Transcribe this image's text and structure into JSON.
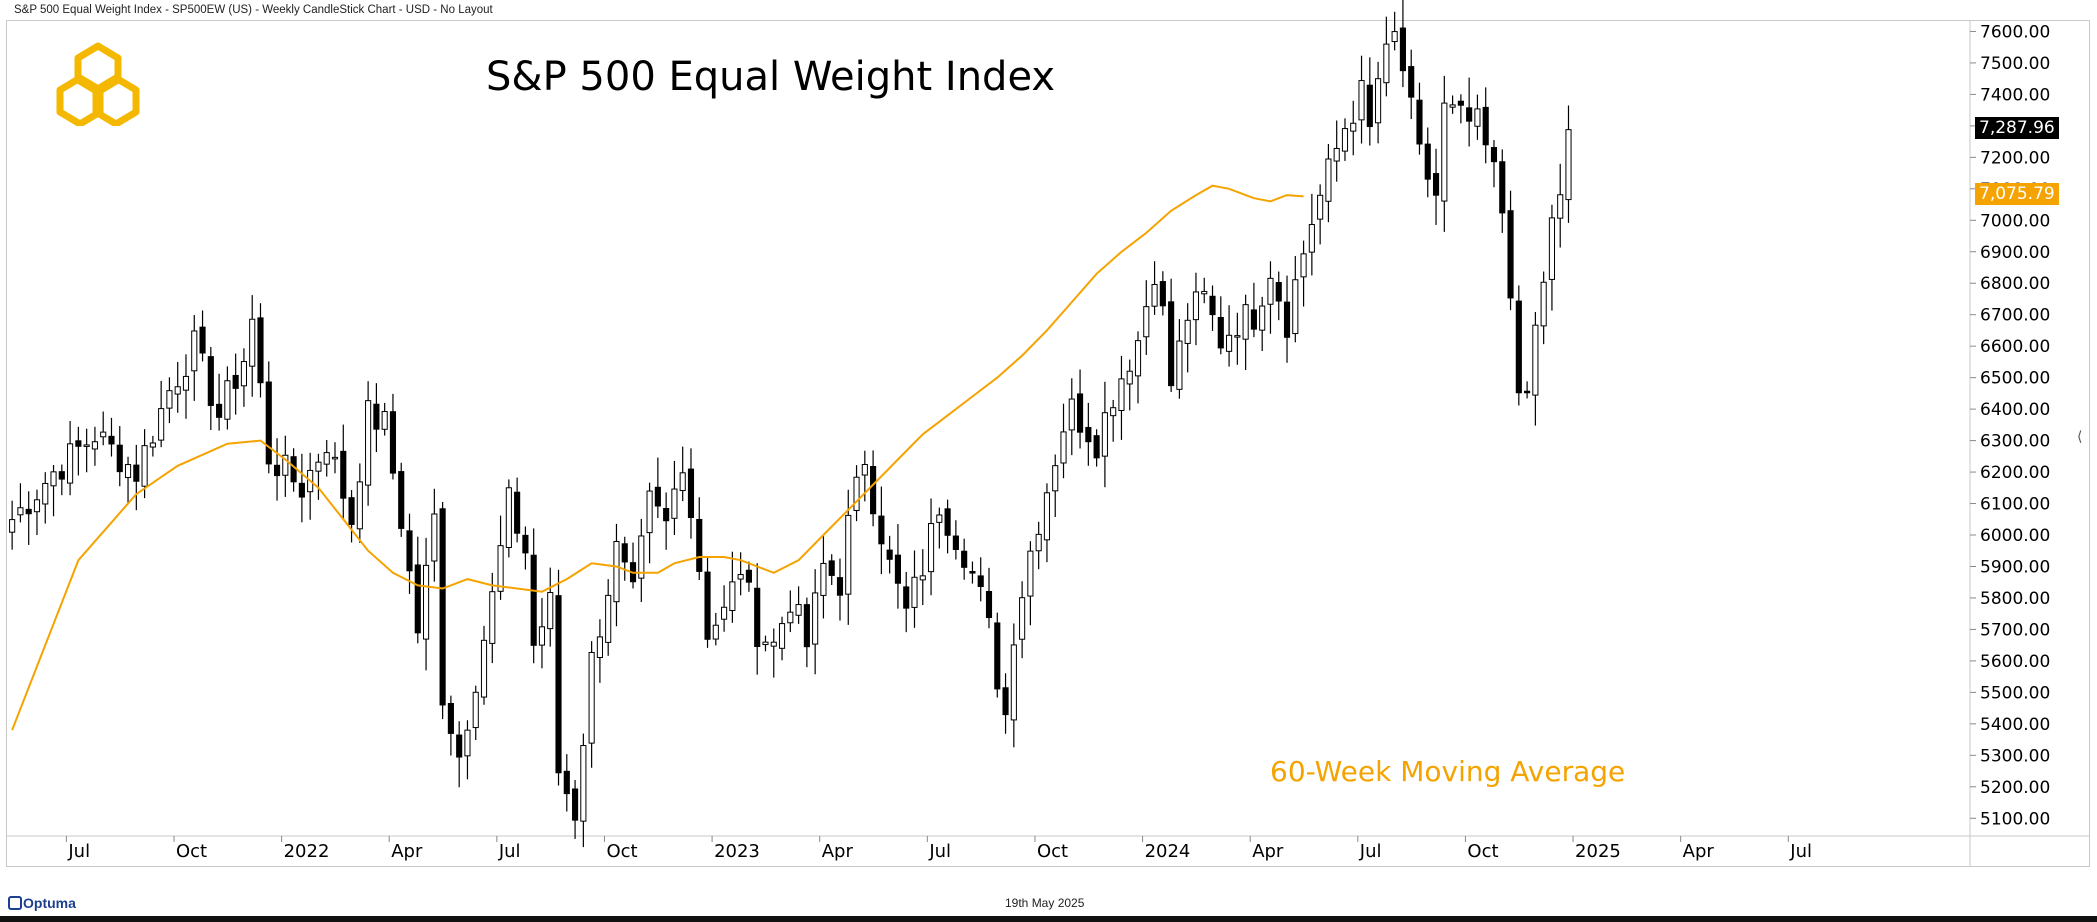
{
  "header": {
    "text": "S&P 500 Equal Weight Index - SP500EW (US) - Weekly CandleStick Chart - USD - No Layout"
  },
  "footer": {
    "date": "19th May 2025",
    "brand": "Optuma"
  },
  "colors": {
    "ma": "#F5A300",
    "candle": "#000000",
    "badge_last": "#000000",
    "logo": "#F5B800"
  },
  "icons": {
    "logo": "hexagon-logo-icon",
    "brand": "optuma-logo-icon",
    "collapse": "chevron-left-icon"
  },
  "chart_data": {
    "type": "candlestick",
    "title": "S&P 500 Equal Weight Index",
    "timeframe": "Weekly",
    "x_tick_labels": [
      "Jul",
      "Oct",
      "2022",
      "Apr",
      "Jul",
      "Oct",
      "2023",
      "Apr",
      "Jul",
      "Oct",
      "2024",
      "Apr",
      "Jul",
      "Oct",
      "2025",
      "Apr",
      "Jul"
    ],
    "x_tick_weeks": [
      8,
      21,
      34,
      47,
      60,
      73,
      86,
      99,
      112,
      125,
      138,
      151,
      164,
      177,
      190,
      203,
      216
    ],
    "y_ticks": [
      5100,
      5200,
      5300,
      5400,
      5500,
      5600,
      5700,
      5800,
      5900,
      6000,
      6100,
      6200,
      6300,
      6400,
      6500,
      6600,
      6700,
      6800,
      6900,
      7000,
      7100,
      7200,
      7300,
      7400,
      7500,
      7600
    ],
    "y_tick_labels": [
      "5100.00",
      "5200.00",
      "5300.00",
      "5400.00",
      "5500.00",
      "5600.00",
      "5700.00",
      "5800.00",
      "5900.00",
      "6000.00",
      "6100.00",
      "6200.00",
      "6300.00",
      "6400.00",
      "6500.00",
      "6600.00",
      "6700.00",
      "6800.00",
      "6900.00",
      "7000.00",
      "7100.00",
      "7200.00",
      "7300.00",
      "7400.00",
      "7500.00",
      "7600.00"
    ],
    "ylim": [
      5050,
      7630
    ],
    "series": [
      {
        "name": "60-Week Moving Average",
        "type": "line"
      }
    ],
    "last_close": 7287.96,
    "last_close_label": "7,287.96",
    "ma_last": 7075.79,
    "ma_last_label": "7,075.79",
    "anchors": [
      [
        0,
        6050
      ],
      [
        5,
        6200
      ],
      [
        10,
        6320
      ],
      [
        15,
        6200
      ],
      [
        19,
        6460
      ],
      [
        22,
        6600
      ],
      [
        25,
        6380
      ],
      [
        28,
        6560
      ],
      [
        29,
        6680
      ],
      [
        31,
        6250
      ],
      [
        33,
        6200
      ],
      [
        35,
        6150
      ],
      [
        38,
        6300
      ],
      [
        41,
        6050
      ],
      [
        43,
        6380
      ],
      [
        45,
        6350
      ],
      [
        47,
        6050
      ],
      [
        49,
        5700
      ],
      [
        51,
        6050
      ],
      [
        52,
        5500
      ],
      [
        54,
        5300
      ],
      [
        56,
        5550
      ],
      [
        58,
        5800
      ],
      [
        60,
        6100
      ],
      [
        62,
        5950
      ],
      [
        63,
        5650
      ],
      [
        65,
        5780
      ],
      [
        66,
        5250
      ],
      [
        68,
        5120
      ],
      [
        70,
        5600
      ],
      [
        73,
        5950
      ],
      [
        75,
        5800
      ],
      [
        77,
        6100
      ],
      [
        79,
        6030
      ],
      [
        81,
        6250
      ],
      [
        83,
        5900
      ],
      [
        84,
        5700
      ],
      [
        86,
        5750
      ],
      [
        88,
        5900
      ],
      [
        90,
        5700
      ],
      [
        92,
        5650
      ],
      [
        94,
        5800
      ],
      [
        96,
        5650
      ],
      [
        98,
        5900
      ],
      [
        100,
        5850
      ],
      [
        101,
        6030
      ],
      [
        103,
        6250
      ],
      [
        104,
        6120
      ],
      [
        106,
        5900
      ],
      [
        108,
        5750
      ],
      [
        110,
        5900
      ],
      [
        112,
        6100
      ],
      [
        115,
        5950
      ],
      [
        117,
        5800
      ],
      [
        118,
        5700
      ],
      [
        119,
        5550
      ],
      [
        120,
        5430
      ],
      [
        121,
        5700
      ],
      [
        123,
        5950
      ],
      [
        125,
        6150
      ],
      [
        127,
        6350
      ],
      [
        128,
        6400
      ],
      [
        131,
        6300
      ],
      [
        133,
        6450
      ],
      [
        136,
        6620
      ],
      [
        138,
        6850
      ],
      [
        139,
        6700
      ],
      [
        140,
        6480
      ],
      [
        142,
        6700
      ],
      [
        144,
        6750
      ],
      [
        146,
        6620
      ],
      [
        148,
        6680
      ],
      [
        150,
        6700
      ],
      [
        152,
        6850
      ],
      [
        154,
        6680
      ],
      [
        155,
        6800
      ],
      [
        157,
        7000
      ],
      [
        159,
        7150
      ],
      [
        161,
        7300
      ],
      [
        163,
        7400
      ],
      [
        164,
        7280
      ],
      [
        165,
        7450
      ],
      [
        167,
        7580
      ],
      [
        168,
        7480
      ],
      [
        170,
        7200
      ],
      [
        172,
        7080
      ],
      [
        173,
        7350
      ],
      [
        175,
        7320
      ],
      [
        177,
        7300
      ],
      [
        179,
        7150
      ],
      [
        180,
        7030
      ],
      [
        181,
        6800
      ],
      [
        182,
        6400
      ],
      [
        183,
        6450
      ],
      [
        184,
        6650
      ],
      [
        186,
        6980
      ],
      [
        187,
        7050
      ],
      [
        188,
        7288
      ]
    ],
    "ma_anchors": [
      [
        0,
        5380
      ],
      [
        8,
        5920
      ],
      [
        15,
        6130
      ],
      [
        20,
        6220
      ],
      [
        26,
        6290
      ],
      [
        30,
        6300
      ],
      [
        33,
        6240
      ],
      [
        37,
        6150
      ],
      [
        40,
        6050
      ],
      [
        43,
        5950
      ],
      [
        46,
        5880
      ],
      [
        49,
        5840
      ],
      [
        52,
        5830
      ],
      [
        55,
        5860
      ],
      [
        58,
        5840
      ],
      [
        61,
        5830
      ],
      [
        64,
        5820
      ],
      [
        67,
        5860
      ],
      [
        70,
        5910
      ],
      [
        73,
        5900
      ],
      [
        75,
        5880
      ],
      [
        78,
        5880
      ],
      [
        80,
        5910
      ],
      [
        83,
        5930
      ],
      [
        86,
        5930
      ],
      [
        88,
        5920
      ],
      [
        90,
        5900
      ],
      [
        92,
        5880
      ],
      [
        95,
        5920
      ],
      [
        98,
        6000
      ],
      [
        101,
        6080
      ],
      [
        104,
        6160
      ],
      [
        107,
        6240
      ],
      [
        110,
        6320
      ],
      [
        113,
        6380
      ],
      [
        116,
        6440
      ],
      [
        119,
        6500
      ],
      [
        122,
        6570
      ],
      [
        125,
        6650
      ],
      [
        128,
        6740
      ],
      [
        131,
        6830
      ],
      [
        134,
        6900
      ],
      [
        137,
        6960
      ],
      [
        140,
        7030
      ],
      [
        143,
        7080
      ],
      [
        145,
        7110
      ],
      [
        147,
        7100
      ],
      [
        149,
        7080
      ],
      [
        150,
        7070
      ],
      [
        152,
        7060
      ],
      [
        153,
        7070
      ],
      [
        154,
        7080
      ],
      [
        156,
        7076
      ]
    ]
  }
}
